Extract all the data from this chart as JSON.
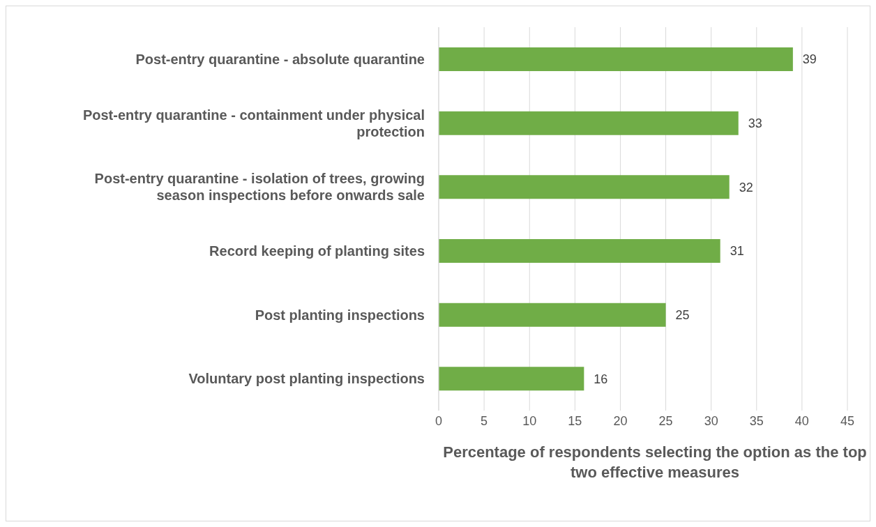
{
  "chart_data": {
    "type": "bar",
    "orientation": "horizontal",
    "categories": [
      "Post-entry quarantine - absolute quarantine",
      "Post-entry quarantine - containment under physical protection",
      "Post-entry quarantine - isolation of trees, growing season inspections before onwards sale",
      "Record keeping of planting sites",
      "Post planting inspections",
      "Voluntary post planting inspections"
    ],
    "values": [
      39,
      33,
      32,
      31,
      25,
      16
    ],
    "color": "#70ad47",
    "xlabel": "Percentage of respondents selecting the option as the top two effective measures",
    "xlim": [
      0,
      45
    ],
    "xticks": [
      0,
      5,
      10,
      15,
      20,
      25,
      30,
      35,
      40,
      45
    ],
    "grid": "x",
    "data_labels": true,
    "legend": false
  }
}
